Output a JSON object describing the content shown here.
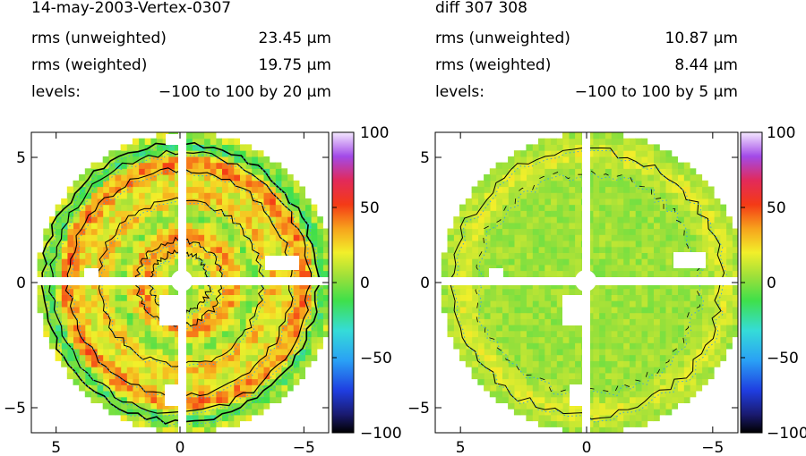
{
  "chart_data": [
    {
      "type": "heatmap",
      "title": "14-may-2003-Vertex-0307",
      "rms_unweighted_label": "rms (unweighted)",
      "rms_unweighted": "23.45 μm",
      "rms_weighted_label": "rms (weighted)",
      "rms_weighted": "19.75 μm",
      "levels_label": "levels:",
      "levels": "−100 to 100 by 20 μm",
      "x_ticks": [
        "5",
        "0",
        "−5"
      ],
      "y_ticks": [
        "5",
        "0",
        "−5"
      ],
      "xlim": [
        6,
        -6
      ],
      "ylim": [
        -6,
        6
      ],
      "colorbar_ticks": [
        "100",
        "50",
        "0",
        "−50",
        "−100"
      ],
      "colorbar_range": [
        -100,
        100
      ],
      "dish_radius": 6,
      "pattern": "strong concentric rings"
    },
    {
      "type": "heatmap",
      "title": "diff 307 308",
      "rms_unweighted_label": "rms (unweighted)",
      "rms_unweighted": "10.87 μm",
      "rms_weighted_label": "rms (weighted)",
      "rms_weighted": "8.44 μm",
      "levels_label": "levels:",
      "levels": "−100 to 100 by 5 μm",
      "x_ticks": [
        "5",
        "0",
        "−5"
      ],
      "y_ticks": [
        "5",
        "0",
        "−5"
      ],
      "xlim": [
        6,
        -6
      ],
      "ylim": [
        -6,
        6
      ],
      "colorbar_ticks": [
        "100",
        "50",
        "0",
        "−50",
        "−100"
      ],
      "colorbar_range": [
        -100,
        100
      ],
      "dish_radius": 6,
      "pattern": "weak residual"
    }
  ]
}
